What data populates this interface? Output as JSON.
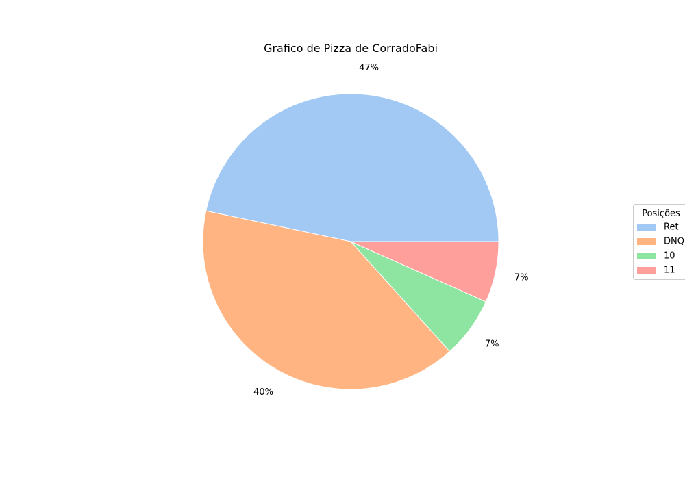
{
  "chart_data": {
    "type": "pie",
    "title": "Grafico de Pizza de CorradoFabi",
    "categories": [
      "Ret",
      "DNQ",
      "10",
      "11"
    ],
    "values": [
      7,
      6,
      1,
      1
    ],
    "percent_labels": [
      "47%",
      "40%",
      "7%",
      "7%"
    ],
    "colors": [
      "#a1c9f4",
      "#ffb482",
      "#8de5a1",
      "#ff9f9b"
    ],
    "start_angle_deg": 0,
    "direction": "counterclockwise",
    "legend": {
      "title": "Posições",
      "placement": "right"
    }
  }
}
